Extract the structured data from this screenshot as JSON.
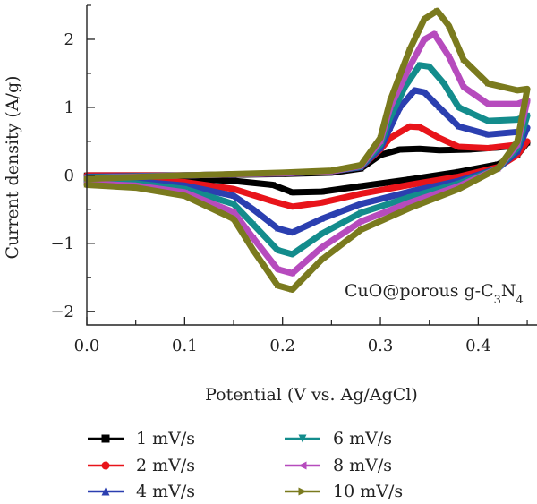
{
  "chart_data": {
    "type": "line",
    "title": "",
    "xlabel": "Potential (V vs. Ag/AgCl)",
    "ylabel": "Current density (A/g)",
    "xlim": [
      0.0,
      0.46
    ],
    "ylim": [
      -2.2,
      2.5
    ],
    "xticks": [
      "0.0",
      "0.1",
      "0.2",
      "0.3",
      "0.4"
    ],
    "yticks": [
      "−2",
      "−1",
      "0",
      "1",
      "2"
    ],
    "annotation": {
      "prefix": "CuO@porous g-C",
      "sub1": "3",
      "mid": "N",
      "sub2": "4"
    },
    "grid": false,
    "legend_position": "bottom",
    "series": [
      {
        "name": "1 mV/s",
        "color": "#000000",
        "marker": "square",
        "anodic": [
          [
            0.0,
            0.0
          ],
          [
            0.1,
            0.0
          ],
          [
            0.2,
            0.02
          ],
          [
            0.25,
            0.04
          ],
          [
            0.28,
            0.1
          ],
          [
            0.3,
            0.3
          ],
          [
            0.32,
            0.38
          ],
          [
            0.34,
            0.39
          ],
          [
            0.36,
            0.37
          ],
          [
            0.39,
            0.38
          ],
          [
            0.42,
            0.41
          ],
          [
            0.44,
            0.44
          ],
          [
            0.45,
            0.48
          ]
        ],
        "cathodic": [
          [
            0.45,
            0.48
          ],
          [
            0.44,
            0.3
          ],
          [
            0.42,
            0.16
          ],
          [
            0.38,
            0.05
          ],
          [
            0.33,
            -0.06
          ],
          [
            0.28,
            -0.16
          ],
          [
            0.24,
            -0.24
          ],
          [
            0.21,
            -0.25
          ],
          [
            0.19,
            -0.14
          ],
          [
            0.15,
            -0.08
          ],
          [
            0.1,
            -0.05
          ],
          [
            0.05,
            -0.03
          ],
          [
            0.0,
            -0.03
          ]
        ]
      },
      {
        "name": "2 mV/s",
        "color": "#e8141a",
        "marker": "circle",
        "anodic": [
          [
            0.0,
            0.0
          ],
          [
            0.1,
            0.0
          ],
          [
            0.2,
            0.03
          ],
          [
            0.25,
            0.06
          ],
          [
            0.28,
            0.12
          ],
          [
            0.3,
            0.38
          ],
          [
            0.31,
            0.55
          ],
          [
            0.33,
            0.72
          ],
          [
            0.34,
            0.71
          ],
          [
            0.36,
            0.55
          ],
          [
            0.38,
            0.42
          ],
          [
            0.41,
            0.4
          ],
          [
            0.44,
            0.45
          ],
          [
            0.45,
            0.5
          ]
        ],
        "cathodic": [
          [
            0.45,
            0.5
          ],
          [
            0.44,
            0.3
          ],
          [
            0.42,
            0.12
          ],
          [
            0.38,
            -0.02
          ],
          [
            0.33,
            -0.14
          ],
          [
            0.28,
            -0.27
          ],
          [
            0.24,
            -0.4
          ],
          [
            0.21,
            -0.46
          ],
          [
            0.19,
            -0.38
          ],
          [
            0.15,
            -0.2
          ],
          [
            0.1,
            -0.1
          ],
          [
            0.05,
            -0.06
          ],
          [
            0.0,
            -0.05
          ]
        ]
      },
      {
        "name": "4 mV/s",
        "color": "#2b3fb0",
        "marker": "triangle-up",
        "anodic": [
          [
            0.0,
            -0.02
          ],
          [
            0.1,
            0.0
          ],
          [
            0.2,
            0.03
          ],
          [
            0.25,
            0.06
          ],
          [
            0.28,
            0.12
          ],
          [
            0.3,
            0.4
          ],
          [
            0.31,
            0.7
          ],
          [
            0.32,
            1.0
          ],
          [
            0.335,
            1.25
          ],
          [
            0.345,
            1.22
          ],
          [
            0.36,
            1.0
          ],
          [
            0.38,
            0.72
          ],
          [
            0.41,
            0.6
          ],
          [
            0.44,
            0.64
          ],
          [
            0.45,
            0.7
          ]
        ],
        "cathodic": [
          [
            0.45,
            0.7
          ],
          [
            0.44,
            0.35
          ],
          [
            0.42,
            0.1
          ],
          [
            0.38,
            -0.08
          ],
          [
            0.33,
            -0.24
          ],
          [
            0.28,
            -0.42
          ],
          [
            0.24,
            -0.64
          ],
          [
            0.21,
            -0.84
          ],
          [
            0.195,
            -0.78
          ],
          [
            0.17,
            -0.5
          ],
          [
            0.15,
            -0.3
          ],
          [
            0.1,
            -0.15
          ],
          [
            0.05,
            -0.09
          ],
          [
            0.0,
            -0.08
          ]
        ]
      },
      {
        "name": "6 mV/s",
        "color": "#138c8c",
        "marker": "triangle-down",
        "anodic": [
          [
            0.0,
            -0.03
          ],
          [
            0.1,
            0.0
          ],
          [
            0.2,
            0.03
          ],
          [
            0.25,
            0.06
          ],
          [
            0.28,
            0.13
          ],
          [
            0.3,
            0.45
          ],
          [
            0.31,
            0.85
          ],
          [
            0.325,
            1.3
          ],
          [
            0.34,
            1.62
          ],
          [
            0.35,
            1.6
          ],
          [
            0.365,
            1.35
          ],
          [
            0.38,
            1.0
          ],
          [
            0.41,
            0.8
          ],
          [
            0.44,
            0.82
          ],
          [
            0.45,
            0.88
          ]
        ],
        "cathodic": [
          [
            0.45,
            0.88
          ],
          [
            0.44,
            0.4
          ],
          [
            0.42,
            0.1
          ],
          [
            0.38,
            -0.12
          ],
          [
            0.33,
            -0.32
          ],
          [
            0.28,
            -0.55
          ],
          [
            0.24,
            -0.86
          ],
          [
            0.21,
            -1.16
          ],
          [
            0.195,
            -1.1
          ],
          [
            0.17,
            -0.72
          ],
          [
            0.15,
            -0.42
          ],
          [
            0.1,
            -0.2
          ],
          [
            0.05,
            -0.12
          ],
          [
            0.0,
            -0.1
          ]
        ]
      },
      {
        "name": "8 mV/s",
        "color": "#b64bbd",
        "marker": "triangle-left",
        "anodic": [
          [
            0.0,
            -0.04
          ],
          [
            0.1,
            0.0
          ],
          [
            0.2,
            0.03
          ],
          [
            0.25,
            0.06
          ],
          [
            0.28,
            0.14
          ],
          [
            0.3,
            0.5
          ],
          [
            0.31,
            1.0
          ],
          [
            0.33,
            1.6
          ],
          [
            0.345,
            2.0
          ],
          [
            0.355,
            2.08
          ],
          [
            0.37,
            1.75
          ],
          [
            0.385,
            1.3
          ],
          [
            0.41,
            1.05
          ],
          [
            0.44,
            1.05
          ],
          [
            0.45,
            1.1
          ]
        ],
        "cathodic": [
          [
            0.45,
            1.1
          ],
          [
            0.44,
            0.45
          ],
          [
            0.42,
            0.1
          ],
          [
            0.38,
            -0.16
          ],
          [
            0.33,
            -0.4
          ],
          [
            0.28,
            -0.68
          ],
          [
            0.24,
            -1.06
          ],
          [
            0.21,
            -1.44
          ],
          [
            0.195,
            -1.38
          ],
          [
            0.17,
            -0.92
          ],
          [
            0.15,
            -0.54
          ],
          [
            0.1,
            -0.25
          ],
          [
            0.05,
            -0.15
          ],
          [
            0.0,
            -0.12
          ]
        ]
      },
      {
        "name": "10 mV/s",
        "color": "#7a7a1e",
        "marker": "triangle-right",
        "anodic": [
          [
            0.0,
            -0.05
          ],
          [
            0.1,
            0.0
          ],
          [
            0.2,
            0.04
          ],
          [
            0.25,
            0.07
          ],
          [
            0.28,
            0.15
          ],
          [
            0.3,
            0.55
          ],
          [
            0.31,
            1.1
          ],
          [
            0.33,
            1.85
          ],
          [
            0.345,
            2.3
          ],
          [
            0.358,
            2.42
          ],
          [
            0.37,
            2.2
          ],
          [
            0.385,
            1.7
          ],
          [
            0.41,
            1.35
          ],
          [
            0.44,
            1.25
          ],
          [
            0.45,
            1.27
          ]
        ],
        "cathodic": [
          [
            0.45,
            1.27
          ],
          [
            0.44,
            0.5
          ],
          [
            0.42,
            0.1
          ],
          [
            0.38,
            -0.2
          ],
          [
            0.33,
            -0.48
          ],
          [
            0.28,
            -0.8
          ],
          [
            0.24,
            -1.24
          ],
          [
            0.21,
            -1.68
          ],
          [
            0.195,
            -1.62
          ],
          [
            0.17,
            -1.1
          ],
          [
            0.15,
            -0.64
          ],
          [
            0.1,
            -0.3
          ],
          [
            0.05,
            -0.18
          ],
          [
            0.0,
            -0.14
          ]
        ]
      }
    ]
  }
}
